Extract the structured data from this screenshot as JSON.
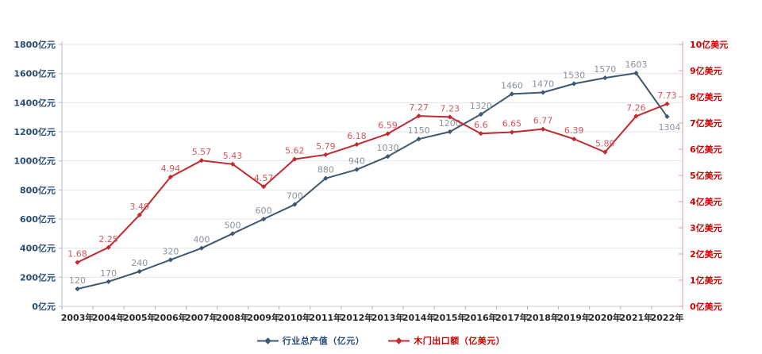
{
  "chart_data": {
    "type": "line",
    "title": "",
    "categories": [
      "2003年",
      "2004年",
      "2005年",
      "2006年",
      "2007年",
      "2008年",
      "2009年",
      "2010年",
      "2011年",
      "2012年",
      "2013年",
      "2014年",
      "2015年",
      "2016年",
      "2017年",
      "2018年",
      "2019年",
      "2020年",
      "2021年",
      "2022年"
    ],
    "series": [
      {
        "name": "行业总产值（亿元）",
        "axis": "left",
        "color": "#3e5871",
        "label_color": "#8b919d",
        "values": [
          120,
          170,
          240,
          320,
          400,
          500,
          600,
          700,
          880,
          940,
          1030,
          1150,
          1200,
          1320,
          1460,
          1470,
          1530,
          1570,
          1603,
          1304
        ],
        "label_below_indices": [
          19
        ]
      },
      {
        "name": "木门出口额（亿美元）",
        "axis": "right",
        "color": "#c02a30",
        "label_color": "#d0585e",
        "values": [
          1.68,
          2.25,
          3.49,
          4.94,
          5.57,
          5.43,
          4.57,
          5.62,
          5.79,
          6.18,
          6.59,
          7.27,
          7.23,
          6.6,
          6.65,
          6.77,
          6.39,
          5.89,
          7.26,
          7.73
        ],
        "label_below_indices": []
      }
    ],
    "left_axis": {
      "min": 0,
      "max": 1800,
      "step": 200,
      "unit": "亿元",
      "labels": [
        "0亿元",
        "200亿元",
        "400亿元",
        "600亿元",
        "800亿元",
        "1000亿元",
        "1200亿元",
        "1400亿元",
        "1600亿元",
        "1800亿元"
      ],
      "color": "#274b77"
    },
    "right_axis": {
      "min": 0,
      "max": 10,
      "step": 1,
      "unit": "亿美元",
      "labels": [
        "0亿美元",
        "1亿美元",
        "2亿美元",
        "3亿美元",
        "4亿美元",
        "5亿美元",
        "6亿美元",
        "7亿美元",
        "8亿美元",
        "9亿美元",
        "10亿美元"
      ],
      "color": "#cc0000"
    },
    "x_axis": {
      "label_color": "#262626"
    },
    "grid": true,
    "legend_position": "bottom",
    "colors": {
      "gridline": "#e3e6ea",
      "left_axis_line": "#b3bcc8",
      "right_axis_line": "#e09a9e",
      "bottom_axis_line": "#c6ccd4",
      "x_tick": "#aab1bb"
    }
  }
}
